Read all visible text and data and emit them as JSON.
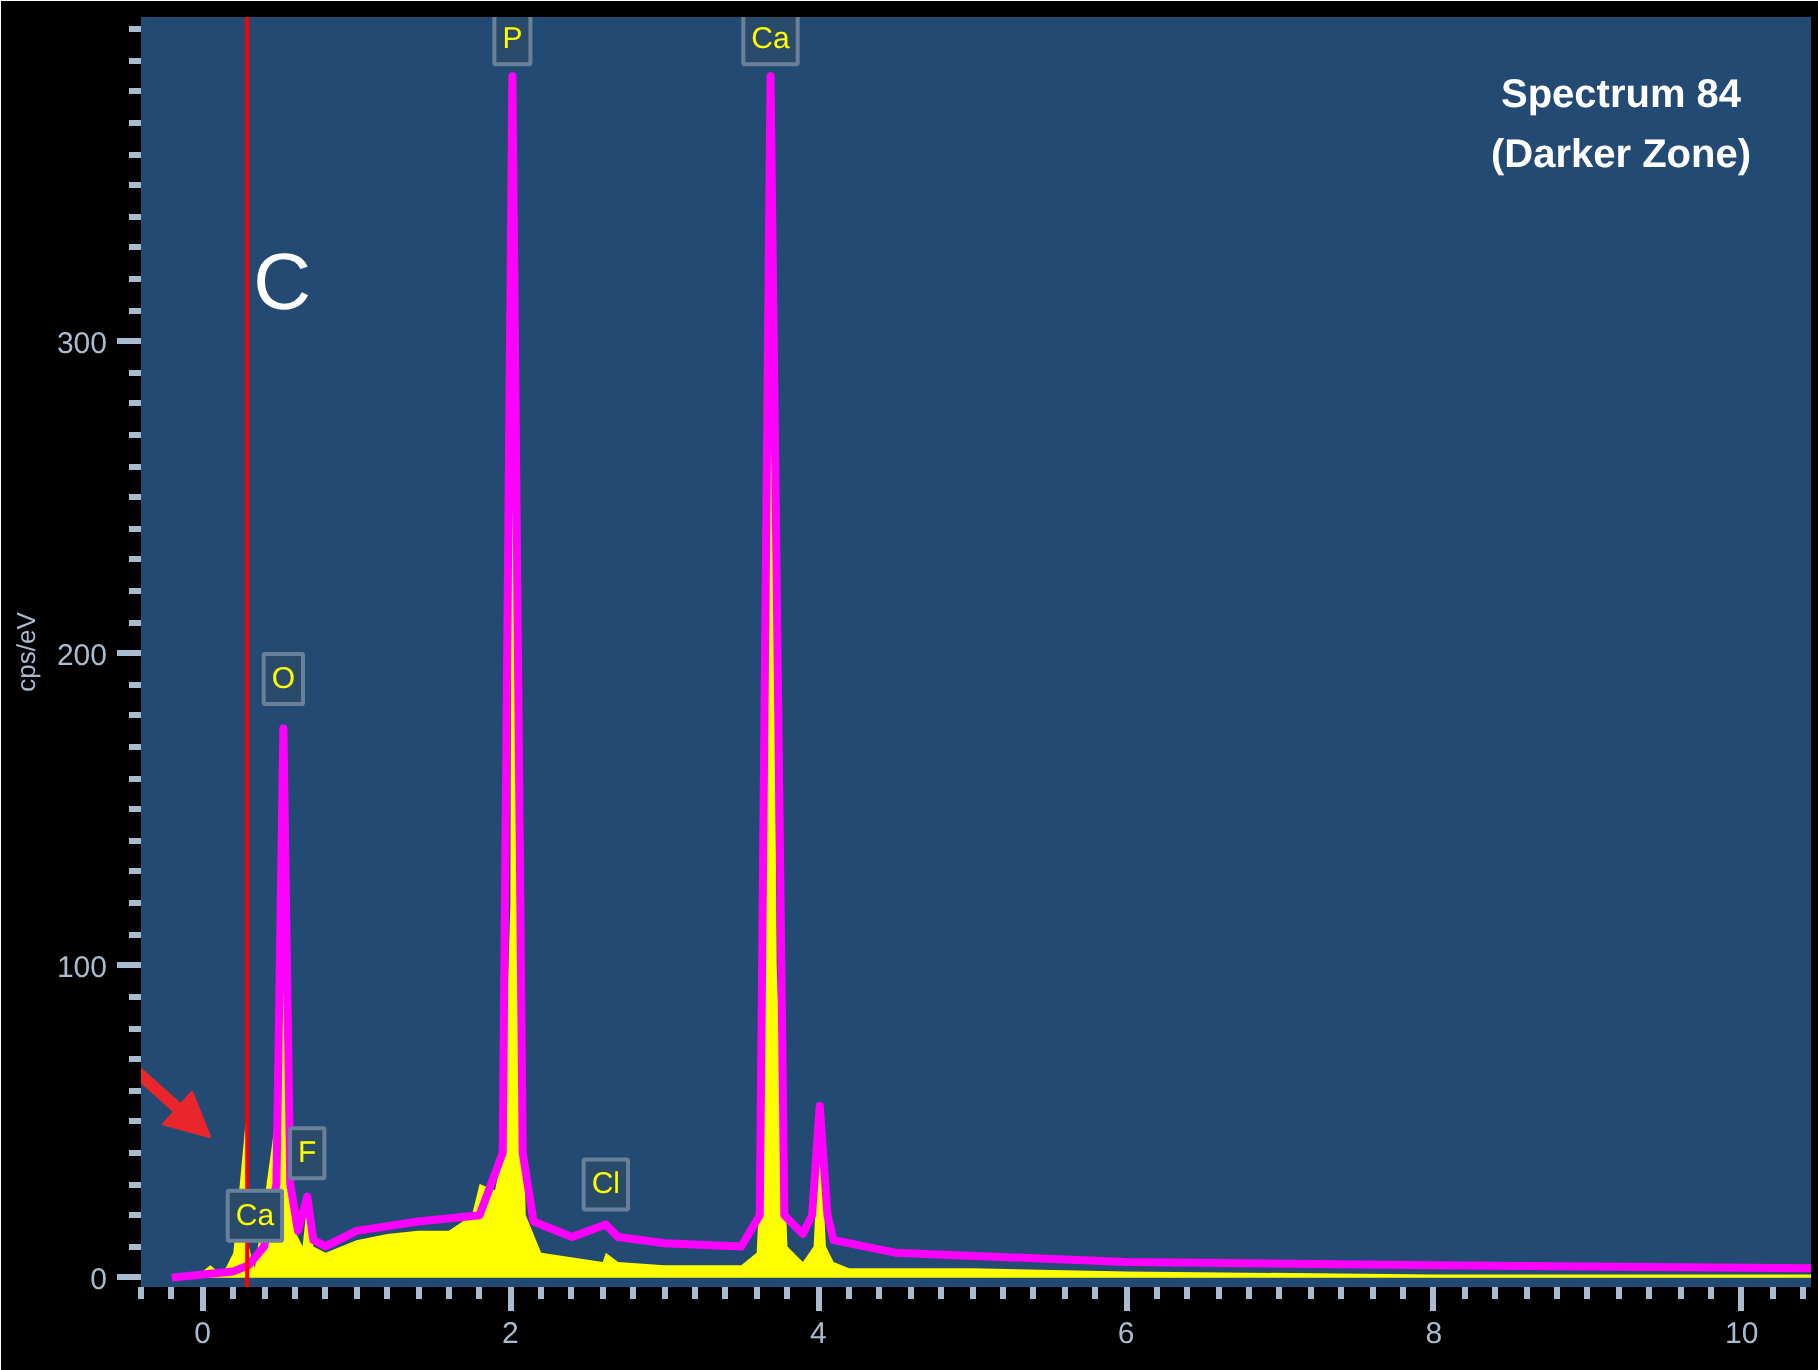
{
  "chart_data": {
    "type": "area",
    "title": "Spectrum 84",
    "subtitle": "(Darker Zone)",
    "ylabel": "cps/eV",
    "xlim": [
      -0.4,
      10.45
    ],
    "ylim": [
      -3,
      404
    ],
    "xticks": [
      0,
      2,
      4,
      6,
      8,
      10
    ],
    "yticks": [
      0,
      100,
      200,
      300
    ],
    "grid": false,
    "series": [
      {
        "color": "#ffff00",
        "x": [
          -0.2,
          0.0,
          0.05,
          0.1,
          0.15,
          0.2,
          0.28,
          0.3,
          0.34,
          0.5,
          0.525,
          0.55,
          0.6,
          0.65,
          0.68,
          0.72,
          0.8,
          1.0,
          1.2,
          1.4,
          1.6,
          1.75,
          1.8,
          1.9,
          1.95,
          2.0,
          2.013,
          2.05,
          2.1,
          2.2,
          2.6,
          2.62,
          2.7,
          3.0,
          3.5,
          3.6,
          3.65,
          3.69,
          3.73,
          3.8,
          3.9,
          3.97,
          4.01,
          4.05,
          4.1,
          4.2,
          5.0,
          6.0,
          8.0,
          10.0,
          10.45
        ],
        "values": [
          0,
          2,
          4,
          2,
          3,
          8,
          50,
          10,
          3,
          60,
          175,
          100,
          15,
          10,
          24,
          10,
          8,
          12,
          14,
          15,
          15,
          20,
          30,
          28,
          40,
          120,
          380,
          100,
          20,
          8,
          5,
          8,
          5,
          4,
          4,
          8,
          60,
          380,
          100,
          10,
          5,
          10,
          50,
          10,
          5,
          3,
          3,
          2,
          1,
          1,
          1
        ]
      },
      {
        "type": "line",
        "color": "#ff00ff",
        "x": [
          -0.2,
          0.0,
          0.2,
          0.3,
          0.4,
          0.48,
          0.525,
          0.57,
          0.62,
          0.68,
          0.72,
          0.8,
          1.0,
          1.4,
          1.8,
          1.95,
          2.013,
          2.08,
          2.15,
          2.4,
          2.62,
          2.7,
          3.0,
          3.5,
          3.62,
          3.69,
          3.78,
          3.9,
          3.96,
          4.01,
          4.06,
          4.1,
          4.5,
          6.0,
          8.0,
          10.45
        ],
        "values": [
          0,
          1,
          2,
          4,
          10,
          30,
          176,
          30,
          15,
          26,
          12,
          10,
          15,
          18,
          20,
          40,
          385,
          40,
          18,
          13,
          17,
          13,
          11,
          10,
          20,
          385,
          20,
          14,
          20,
          55,
          20,
          12,
          8,
          5,
          4,
          3
        ]
      }
    ],
    "ref_lines": [
      {
        "axis": "x",
        "value": 0.29,
        "label": "C",
        "color": "#ff0000"
      }
    ],
    "annotations": [
      {
        "text": "P",
        "x": 2.013,
        "y": 385
      },
      {
        "text": "Ca",
        "x": 3.69,
        "y": 385
      },
      {
        "text": "O",
        "x": 0.525,
        "y": 180
      },
      {
        "text": "F",
        "x": 0.68,
        "y": 28
      },
      {
        "text": "Ca",
        "x": 0.34,
        "y": 8
      },
      {
        "text": "Cl",
        "x": 2.62,
        "y": 18
      }
    ]
  }
}
